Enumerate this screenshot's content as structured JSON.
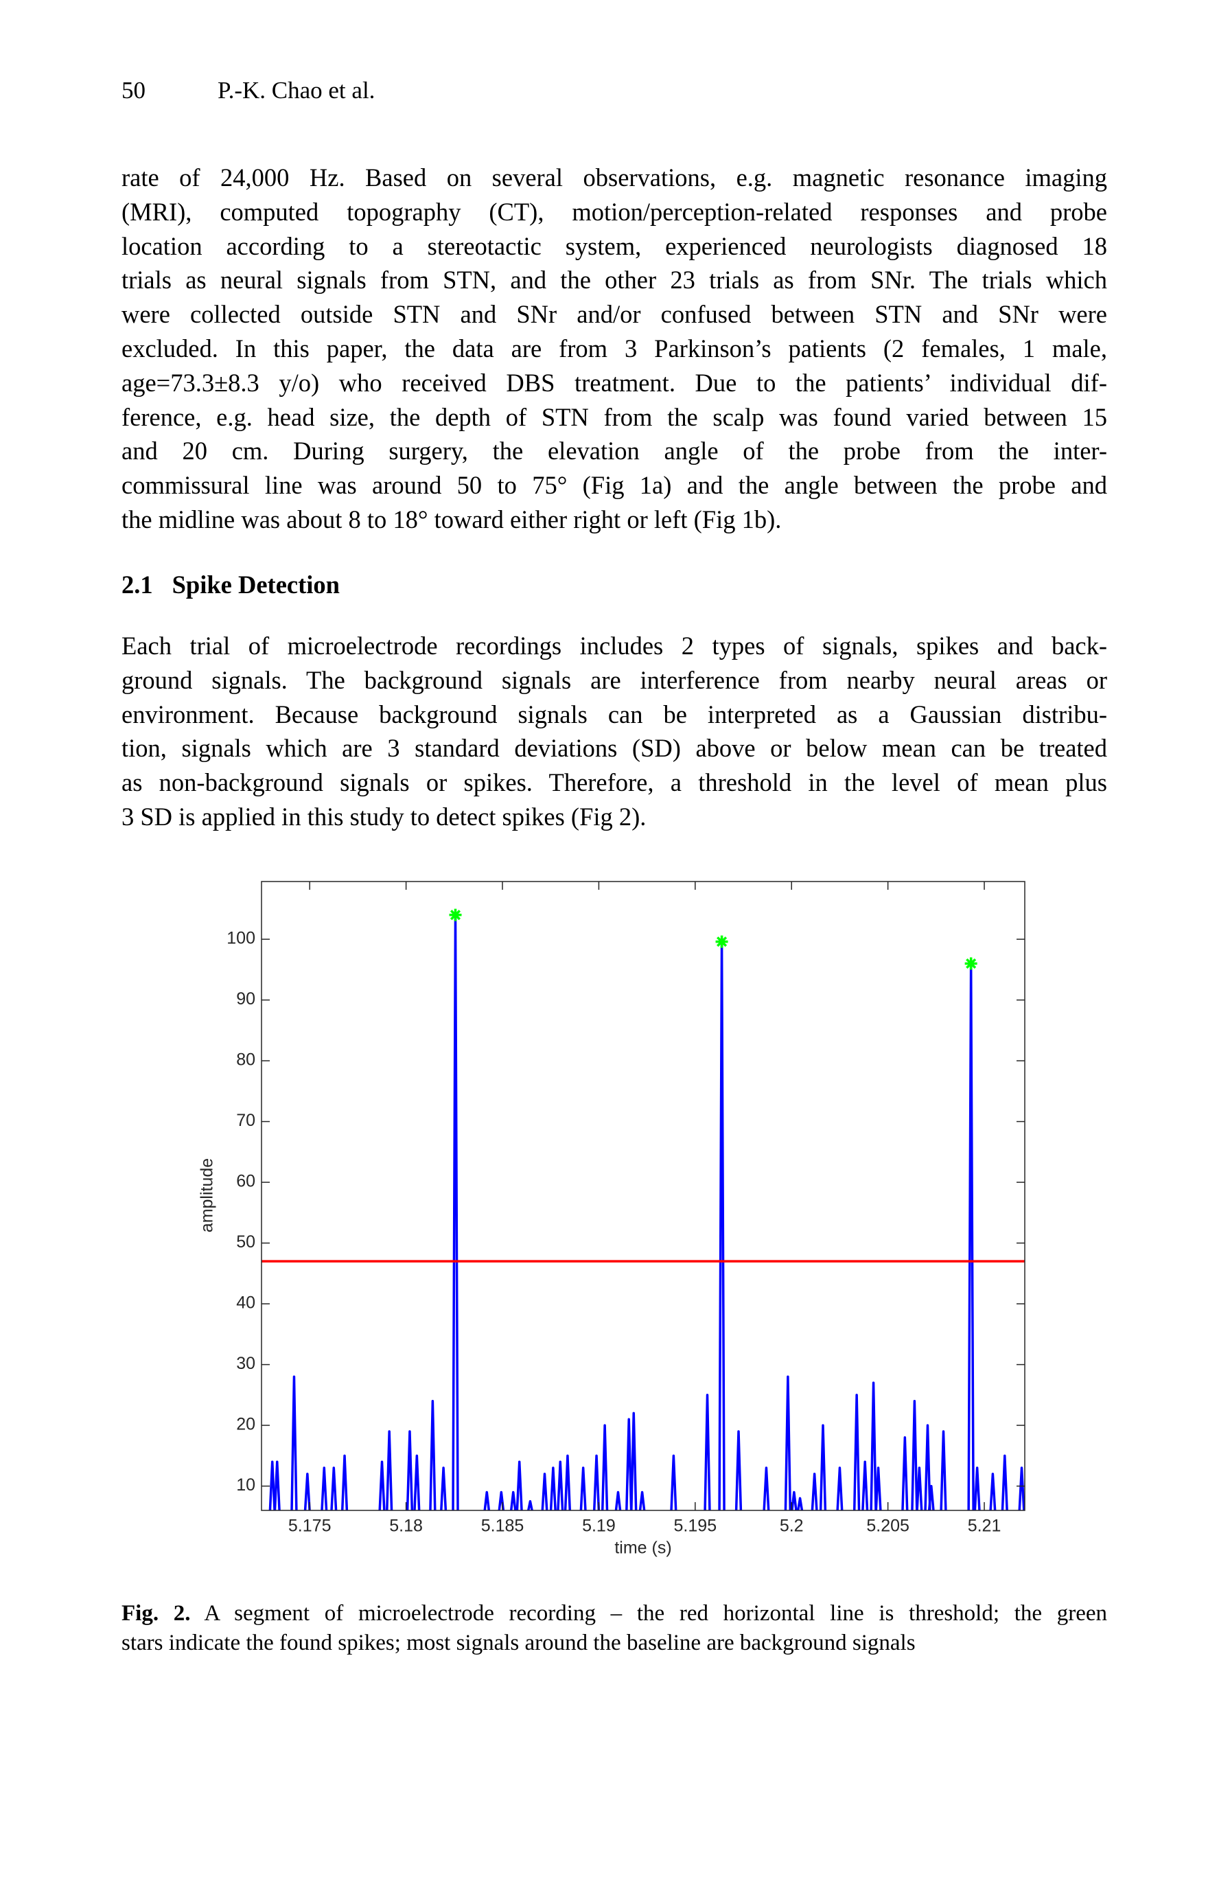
{
  "header": {
    "page": "50",
    "authors": "P.-K. Chao et al."
  },
  "paragraphs": [
    {
      "lines": [
        "rate of 24,000 Hz. Based on several observations, e.g. magnetic resonance imaging",
        "(MRI), computed topography (CT), motion/perception-related responses and probe",
        "location according to a stereotactic system, experienced neurologists diagnosed 18",
        "trials as neural signals from STN, and the other 23 trials as from SNr. The trials which",
        "were collected outside STN and SNr and/or confused between STN and SNr were",
        "excluded. In this paper, the data are from 3 Parkinson’s patients (2 females, 1 male,",
        "age=73.3±8.3 y/o) who received DBS treatment. Due to the patients’ individual dif-",
        "ference, e.g. head size, the depth of STN from the scalp was found varied between 15",
        "and 20 cm. During surgery, the elevation angle of the probe from the inter-",
        "commissural line was around 50 to 75° (Fig 1a) and the angle between the probe and",
        "the midline was about 8 to 18° toward either right or left (Fig 1b)."
      ]
    },
    {
      "lines": [
        "Each trial of microelectrode recordings includes 2 types of signals, spikes and back-",
        "ground signals. The background signals are interference from nearby neural areas or",
        "environment. Because background signals can be interpreted as a Gaussian distribu-",
        "tion, signals which are 3 standard deviations (SD) above or below mean can be treated",
        "as non-background signals or spikes. Therefore, a threshold in the level of mean plus",
        "3 SD is applied in this study to detect spikes (Fig 2)."
      ]
    }
  ],
  "section": {
    "number": "2.1",
    "title": "Spike Detection"
  },
  "caption": {
    "label": "Fig. 2.",
    "lines": [
      "A segment of microelectrode recording – the red horizontal line is threshold; the green",
      "stars indicate the found spikes; most signals around the baseline are background signals"
    ]
  },
  "chart_data": {
    "type": "spike",
    "xlabel": "time (s)",
    "ylabel": "amplitude",
    "xlim": [
      5.1725,
      5.2121
    ],
    "ylim": [
      6,
      109.5
    ],
    "xticks": [
      5.175,
      5.18,
      5.185,
      5.19,
      5.195,
      5.2,
      5.205,
      5.21
    ],
    "yticks": [
      10,
      20,
      30,
      40,
      50,
      60,
      70,
      80,
      90,
      100
    ],
    "series": [
      {
        "color": "#0000ff",
        "x": [
          5.17306,
          5.17331,
          5.17419,
          5.17488,
          5.17575,
          5.17625,
          5.17681,
          5.17875,
          5.17913,
          5.18019,
          5.18056,
          5.18138,
          5.18194,
          5.18256,
          5.18419,
          5.18494,
          5.18556,
          5.18588,
          5.18644,
          5.18719,
          5.18763,
          5.188,
          5.18838,
          5.18919,
          5.18988,
          5.19031,
          5.191,
          5.19156,
          5.19181,
          5.19225,
          5.19388,
          5.19563,
          5.19638,
          5.19725,
          5.19869,
          5.19981,
          5.20013,
          5.20044,
          5.20119,
          5.20163,
          5.2025,
          5.20338,
          5.20381,
          5.20425,
          5.2045,
          5.20588,
          5.20638,
          5.20663,
          5.20706,
          5.20725,
          5.20788,
          5.20931,
          5.20963,
          5.21044,
          5.21106,
          5.21194
        ],
        "values": [
          14,
          14,
          28,
          12,
          13,
          13,
          15,
          14,
          19,
          19,
          15,
          24,
          13,
          104,
          9,
          9,
          9,
          14,
          7.5,
          12,
          13,
          14,
          15,
          13,
          15,
          20,
          9,
          21,
          22,
          9,
          15,
          25,
          100,
          19,
          13,
          28,
          9,
          8,
          12,
          20,
          13,
          25,
          14,
          27,
          13,
          18,
          24,
          13,
          20,
          10,
          19,
          96,
          13,
          12,
          15,
          13
        ]
      }
    ],
    "threshold": {
      "value": 47,
      "color": "#ff0000"
    },
    "markers": {
      "color": "#00ff00",
      "x": [
        5.18256,
        5.19638,
        5.20931
      ],
      "values": [
        104,
        99.6,
        96
      ]
    }
  }
}
